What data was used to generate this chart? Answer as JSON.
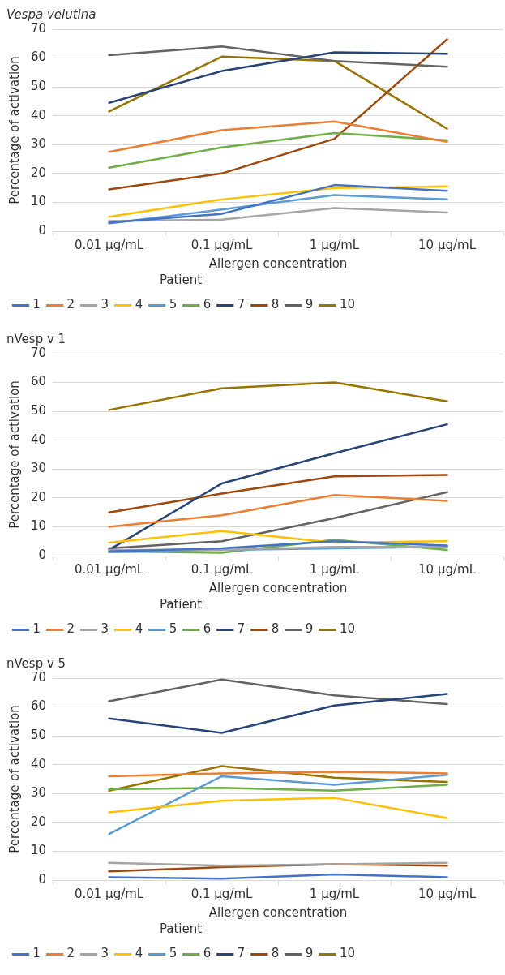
{
  "chart_data": [
    {
      "type": "line",
      "title": "Vespa velutina",
      "xlabel": "Allergen concentration",
      "ylabel": "Percentage of activation",
      "legend_title": "Patient",
      "legend": "bottom",
      "grid": "y",
      "categories": [
        "0.01 μg/mL",
        "0.1 μg/mL",
        "1 μg/mL",
        "10 μg/mL"
      ],
      "ylim": [
        0,
        70
      ],
      "yticks": [
        0,
        10,
        20,
        30,
        40,
        50,
        60,
        70
      ],
      "series": [
        {
          "name": "1",
          "color": "#4472c4",
          "values": [
            3,
            6,
            16,
            14
          ]
        },
        {
          "name": "2",
          "color": "#ed7d31",
          "values": [
            27.5,
            35,
            38,
            31
          ]
        },
        {
          "name": "3",
          "color": "#a5a5a5",
          "values": [
            3.5,
            4,
            8,
            6.5
          ]
        },
        {
          "name": "4",
          "color": "#ffc000",
          "values": [
            5,
            11,
            15,
            15.5
          ]
        },
        {
          "name": "5",
          "color": "#5b9bd5",
          "values": [
            2.7,
            7.5,
            12.5,
            11
          ]
        },
        {
          "name": "6",
          "color": "#70ad47",
          "values": [
            22,
            29,
            34,
            31.5
          ]
        },
        {
          "name": "7",
          "color": "#264478",
          "values": [
            44.5,
            55.5,
            62,
            61.5
          ]
        },
        {
          "name": "8",
          "color": "#9e480e",
          "values": [
            14.5,
            20,
            32,
            66.5
          ]
        },
        {
          "name": "9",
          "color": "#636363",
          "values": [
            61,
            64,
            59,
            57
          ]
        },
        {
          "name": "10",
          "color": "#997300",
          "values": [
            41.5,
            60.5,
            59,
            35.5
          ]
        }
      ]
    },
    {
      "type": "line",
      "title": "nVesp v 1",
      "xlabel": "Allergen concentration",
      "ylabel": "Percentage of activation",
      "legend_title": "Patient",
      "legend": "bottom",
      "grid": "y",
      "categories": [
        "0.01 μg/mL",
        "0.1 μg/mL",
        "1 μg/mL",
        "10 μg/mL"
      ],
      "ylim": [
        0,
        70
      ],
      "yticks": [
        0,
        10,
        20,
        30,
        40,
        50,
        60,
        70
      ],
      "series": [
        {
          "name": "1",
          "color": "#4472c4",
          "values": [
            1.5,
            2.5,
            5,
            3.5
          ]
        },
        {
          "name": "2",
          "color": "#ed7d31",
          "values": [
            10,
            14,
            21,
            19
          ]
        },
        {
          "name": "3",
          "color": "#a5a5a5",
          "values": [
            2,
            2,
            3,
            3
          ]
        },
        {
          "name": "4",
          "color": "#ffc000",
          "values": [
            4.5,
            8.5,
            4.5,
            5
          ]
        },
        {
          "name": "5",
          "color": "#5b9bd5",
          "values": [
            1.2,
            2,
            2.5,
            3
          ]
        },
        {
          "name": "6",
          "color": "#70ad47",
          "values": [
            1.5,
            1,
            5.5,
            2
          ]
        },
        {
          "name": "7",
          "color": "#264478",
          "values": [
            2,
            25,
            35.5,
            45.5
          ]
        },
        {
          "name": "8",
          "color": "#9e480e",
          "values": [
            15,
            21.5,
            27.5,
            28
          ]
        },
        {
          "name": "9",
          "color": "#636363",
          "values": [
            2.5,
            5,
            13,
            22
          ]
        },
        {
          "name": "10",
          "color": "#997300",
          "values": [
            50.5,
            58,
            60,
            53.5
          ]
        }
      ]
    },
    {
      "type": "line",
      "title": "nVesp v 5",
      "xlabel": "Allergen concentration",
      "ylabel": "Percentage of activation",
      "legend_title": "Patient",
      "legend": "bottom",
      "grid": "y",
      "categories": [
        "0.01 μg/mL",
        "0.1 μg/mL",
        "1 μg/mL",
        "10 μg/mL"
      ],
      "ylim": [
        0,
        70
      ],
      "yticks": [
        0,
        10,
        20,
        30,
        40,
        50,
        60,
        70
      ],
      "series": [
        {
          "name": "1",
          "color": "#4472c4",
          "values": [
            1,
            0.5,
            2,
            1
          ]
        },
        {
          "name": "2",
          "color": "#ed7d31",
          "values": [
            36,
            37,
            37.5,
            37
          ]
        },
        {
          "name": "3",
          "color": "#a5a5a5",
          "values": [
            6,
            5,
            5.5,
            6
          ]
        },
        {
          "name": "4",
          "color": "#ffc000",
          "values": [
            23.5,
            27.5,
            28.5,
            21.5
          ]
        },
        {
          "name": "5",
          "color": "#5b9bd5",
          "values": [
            16,
            36,
            33,
            36.5
          ]
        },
        {
          "name": "6",
          "color": "#70ad47",
          "values": [
            31.5,
            32,
            31,
            33
          ]
        },
        {
          "name": "7",
          "color": "#264478",
          "values": [
            56,
            51,
            60.5,
            64.5
          ]
        },
        {
          "name": "8",
          "color": "#9e480e",
          "values": [
            3,
            4.5,
            5.5,
            5
          ]
        },
        {
          "name": "9",
          "color": "#636363",
          "values": [
            62,
            69.5,
            64,
            61
          ]
        },
        {
          "name": "10",
          "color": "#997300",
          "values": [
            31,
            39.5,
            35.5,
            34
          ]
        }
      ]
    }
  ]
}
